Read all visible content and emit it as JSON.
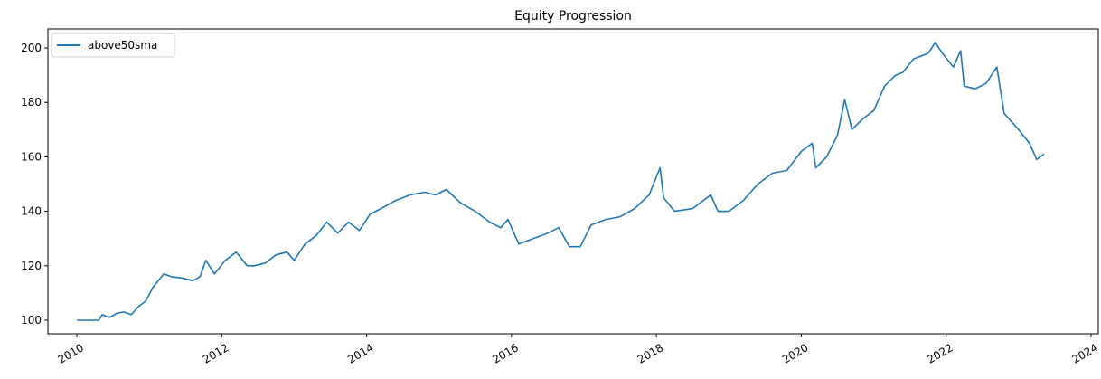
{
  "chart_data": {
    "type": "line",
    "title": "Equity Progression",
    "xlabel": "",
    "ylabel": "",
    "xlim": [
      2009.6,
      2024.1
    ],
    "ylim": [
      95,
      207
    ],
    "x_ticks": [
      2010,
      2012,
      2014,
      2016,
      2018,
      2020,
      2022,
      2024
    ],
    "x_tick_labels": [
      "2010",
      "2012",
      "2014",
      "2016",
      "2018",
      "2020",
      "2022",
      "2024"
    ],
    "y_ticks": [
      100,
      120,
      140,
      160,
      180,
      200
    ],
    "y_tick_labels": [
      "100",
      "120",
      "140",
      "160",
      "180",
      "200"
    ],
    "grid": false,
    "legend_position": "upper-left",
    "series": [
      {
        "name": "above50sma",
        "color": "#1f77b4",
        "x": [
          2010.0,
          2010.3,
          2010.35,
          2010.45,
          2010.55,
          2010.65,
          2010.75,
          2010.85,
          2010.95,
          2011.05,
          2011.2,
          2011.3,
          2011.45,
          2011.6,
          2011.7,
          2011.78,
          2011.9,
          2012.05,
          2012.2,
          2012.35,
          2012.45,
          2012.6,
          2012.75,
          2012.9,
          2013.0,
          2013.15,
          2013.3,
          2013.45,
          2013.6,
          2013.75,
          2013.9,
          2014.05,
          2014.2,
          2014.4,
          2014.6,
          2014.8,
          2014.95,
          2015.1,
          2015.3,
          2015.5,
          2015.7,
          2015.85,
          2015.95,
          2016.1,
          2016.3,
          2016.5,
          2016.65,
          2016.8,
          2016.95,
          2017.1,
          2017.3,
          2017.5,
          2017.7,
          2017.9,
          2018.05,
          2018.1,
          2018.25,
          2018.5,
          2018.75,
          2018.85,
          2019.0,
          2019.2,
          2019.4,
          2019.6,
          2019.8,
          2020.0,
          2020.15,
          2020.2,
          2020.35,
          2020.5,
          2020.6,
          2020.7,
          2020.85,
          2021.0,
          2021.15,
          2021.3,
          2021.4,
          2021.55,
          2021.75,
          2021.85,
          2021.95,
          2022.1,
          2022.2,
          2022.25,
          2022.4,
          2022.55,
          2022.7,
          2022.8,
          2023.0,
          2023.15,
          2023.25,
          2023.35
        ],
        "y": [
          100,
          100,
          102,
          101,
          102.5,
          103,
          102,
          105,
          107,
          112,
          117,
          116,
          115.5,
          114.5,
          116,
          122,
          117,
          122,
          125,
          120,
          120,
          121,
          124,
          125,
          122,
          128,
          131,
          136,
          132,
          136,
          133,
          139,
          141,
          144,
          146,
          147,
          146,
          148,
          143,
          140,
          136,
          134,
          137,
          128,
          130,
          132,
          134,
          127,
          127,
          135,
          137,
          138,
          141,
          146,
          156,
          145,
          140,
          141,
          146,
          140,
          140,
          144,
          150,
          154,
          155,
          162,
          165,
          156,
          160,
          168,
          181,
          170,
          174,
          177,
          186,
          190,
          191,
          196,
          198,
          202,
          198,
          193,
          199,
          186,
          185,
          187,
          193,
          176,
          170,
          165,
          159,
          161
        ]
      }
    ]
  }
}
